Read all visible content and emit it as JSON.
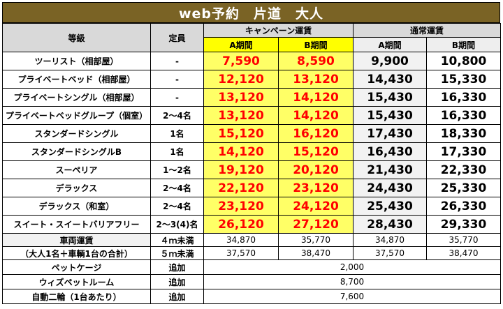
{
  "title": "web予約　片道　大人",
  "headers": {
    "grade": "等級",
    "capacity": "定員",
    "campaign": "キャンペーン運賃",
    "regular": "通常運賃",
    "periodA": "A期間",
    "periodB": "B期間"
  },
  "rows": [
    {
      "name": "ツーリスト（相部屋）",
      "cap": "-",
      "ca": "7,590",
      "cb": "8,590",
      "ra": "9,900",
      "rb": "10,800"
    },
    {
      "name": "プライベートベッド（相部屋）",
      "cap": "-",
      "ca": "12,120",
      "cb": "13,120",
      "ra": "14,430",
      "rb": "15,330"
    },
    {
      "name": "プライベートシングル（相部屋）",
      "cap": "-",
      "ca": "13,120",
      "cb": "14,120",
      "ra": "15,430",
      "rb": "16,330"
    },
    {
      "name": "プライベートベッドグループ（個室）",
      "cap": "2～4名",
      "ca": "13,120",
      "cb": "14,120",
      "ra": "15,430",
      "rb": "16,330"
    },
    {
      "name": "スタンダードシングル",
      "cap": "1名",
      "ca": "15,120",
      "cb": "16,120",
      "ra": "17,430",
      "rb": "18,330"
    },
    {
      "name": "スタンダードシングルB",
      "cap": "1名",
      "ca": "14,120",
      "cb": "15,120",
      "ra": "16,430",
      "rb": "17,330"
    },
    {
      "name": "スーペリア",
      "cap": "1～2名",
      "ca": "19,120",
      "cb": "20,120",
      "ra": "21,430",
      "rb": "22,330"
    },
    {
      "name": "デラックス",
      "cap": "2～4名",
      "ca": "22,120",
      "cb": "23,120",
      "ra": "24,430",
      "rb": "25,330"
    },
    {
      "name": "デラックス（和室）",
      "cap": "2～4名",
      "ca": "23,120",
      "cb": "24,120",
      "ra": "25,430",
      "rb": "26,330"
    },
    {
      "name": "スイート・スイートバリアフリー",
      "cap": "2～3(4)名",
      "ca": "26,120",
      "cb": "27,120",
      "ra": "28,430",
      "rb": "29,330"
    }
  ],
  "vehicle": {
    "label1": "車両運賃",
    "label2": "（大人1名＋車輌1台の合計）",
    "rows": [
      {
        "size": "４ｍ未満",
        "ca": "34,870",
        "cb": "35,770",
        "ra": "34,870",
        "rb": "35,770"
      },
      {
        "size": "５ｍ未満",
        "ca": "37,570",
        "cb": "38,470",
        "ra": "37,570",
        "rb": "38,470"
      }
    ]
  },
  "extras": [
    {
      "name": "ペットケージ",
      "type": "追加",
      "price": "2,000"
    },
    {
      "name": "ウィズペットルーム",
      "type": "追加",
      "price": "8,700"
    },
    {
      "name": "自動二輪（1台あたり）",
      "type": "追加",
      "price": "7,600"
    }
  ]
}
